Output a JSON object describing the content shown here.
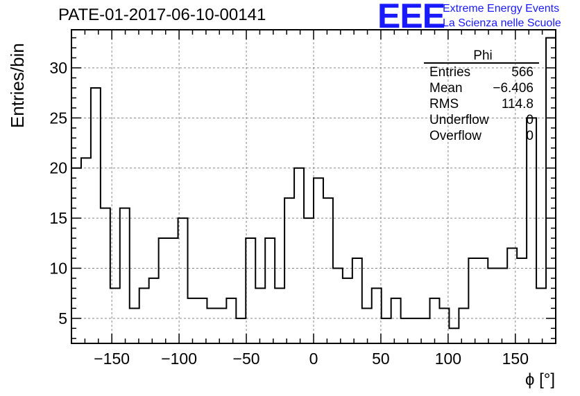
{
  "title": "PATE-01-2017-06-10-00141",
  "logo": {
    "mark": "EEE",
    "line1": "Extreme Energy Events",
    "line2": "La Scienza nelle Scuole",
    "color": "#1a1aff"
  },
  "stats": {
    "name": "Phi",
    "rows": [
      {
        "label": "Entries",
        "value": "566"
      },
      {
        "label": "Mean",
        "value": "−6.406"
      },
      {
        "label": "RMS",
        "value": "114.8"
      },
      {
        "label": "Underflow",
        "value": "0"
      },
      {
        "label": "Overflow",
        "value": "0"
      }
    ]
  },
  "chart_data": {
    "type": "histogram",
    "title": "PATE-01-2017-06-10-00141",
    "xlabel": "ϕ [°]",
    "ylabel": "Entries/bin",
    "xlim": [
      -180,
      180
    ],
    "ylim": [
      2.5,
      33.8
    ],
    "grid": true,
    "bin_width": 7.2,
    "bin_edges_start": -180,
    "values": [
      20,
      21,
      28,
      16,
      8,
      16,
      6,
      8,
      9,
      13,
      13,
      15,
      7,
      7,
      6,
      6,
      7,
      5,
      13,
      8,
      13,
      8,
      17,
      20,
      15,
      19,
      17,
      10,
      9,
      11,
      6,
      8,
      5,
      7,
      5,
      5,
      5,
      7,
      6,
      4,
      6,
      11,
      11,
      10,
      10,
      12,
      11,
      25,
      8,
      33
    ],
    "xticks": [
      -150,
      -100,
      -50,
      0,
      50,
      100,
      150
    ],
    "xtick_labels": [
      "−150",
      "−100",
      "−50",
      "0",
      "50",
      "100",
      "150"
    ],
    "yticks": [
      5,
      10,
      15,
      20,
      25,
      30
    ],
    "ytick_labels": [
      "5",
      "10",
      "15",
      "20",
      "25",
      "30"
    ]
  }
}
